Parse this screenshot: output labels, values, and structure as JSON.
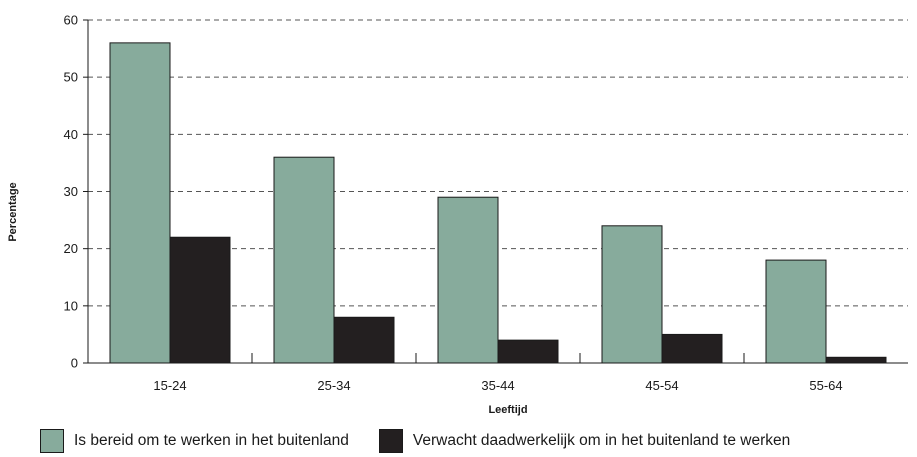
{
  "chart_data": {
    "type": "bar",
    "title": "",
    "xlabel": "Leeftijd",
    "ylabel": "Percentage",
    "categories": [
      "15-24",
      "25-34",
      "35-44",
      "45-54",
      "55-64"
    ],
    "series": [
      {
        "name": "Is bereid om te werken in het buitenland",
        "values": [
          56,
          36,
          29,
          24,
          18
        ],
        "color": "#87ab9c"
      },
      {
        "name": "Verwacht daadwerkelijk om in het buitenland te werken",
        "values": [
          22,
          8,
          4,
          5,
          1
        ],
        "color": "#231f20"
      }
    ],
    "ylim": [
      0,
      60
    ],
    "yticks": [
      0,
      10,
      20,
      30,
      40,
      50,
      60
    ],
    "grid": "dashed horizontal",
    "legend_position": "bottom"
  }
}
